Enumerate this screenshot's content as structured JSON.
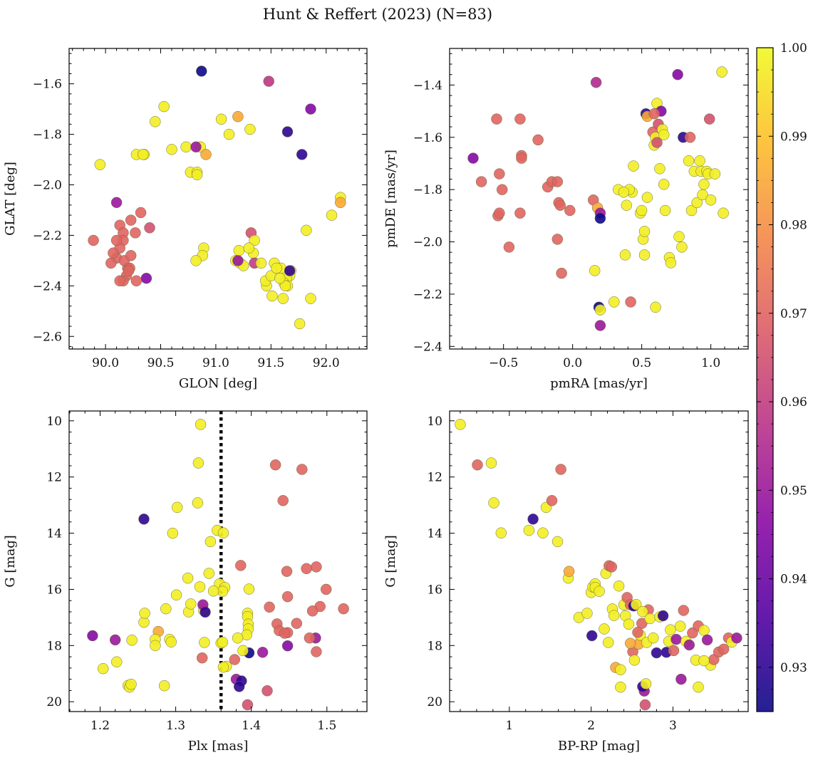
{
  "figure": {
    "title": "Hunt & Reffert (2023) (N=83)"
  },
  "colorbar": {
    "vmin": 0.925,
    "vmax": 1.0,
    "ticks": [
      0.93,
      0.94,
      0.95,
      0.96,
      0.97,
      0.98,
      0.99,
      1.0
    ],
    "tick_labels": [
      "0.93",
      "0.94",
      "0.95",
      "0.96",
      "0.97",
      "0.98",
      "0.99",
      "1.00"
    ],
    "colormap": "plasma",
    "colors": [
      "#0d0887",
      "#5302a3",
      "#8b0aa5",
      "#b83289",
      "#db5c68",
      "#f48849",
      "#febd2a",
      "#f0f921"
    ]
  },
  "chart_data": [
    {
      "type": "scatter",
      "id": "glon-glat",
      "xlabel": "GLON [deg]",
      "ylabel": "GLAT [deg]",
      "xlim": [
        89.67,
        92.37
      ],
      "ylim": [
        -2.65,
        -1.46
      ],
      "y_inverted": false,
      "xticks": [
        90.0,
        90.5,
        91.0,
        91.5,
        92.0
      ],
      "xtick_labels": [
        "90.0",
        "90.5",
        "91.0",
        "91.5",
        "92.0"
      ],
      "yticks": [
        -2.6,
        -2.4,
        -2.2,
        -2.0,
        -1.8,
        -1.6
      ],
      "ytick_labels": [
        "−2.6",
        "−2.4",
        "−2.2",
        "−2.0",
        "−1.8",
        "−1.6"
      ],
      "x": [
        90.87,
        91.48,
        89.95,
        90.53,
        90.45,
        90.28,
        90.35,
        90.34,
        90.1,
        91.05,
        91.2,
        91.12,
        91.31,
        90.77,
        90.86,
        90.73,
        90.91,
        90.83,
        90.83,
        90.6,
        91.65,
        91.86,
        91.78,
        90.1,
        90.05,
        89.89,
        90.2,
        90.23,
        90.4,
        90.32,
        90.13,
        90.16,
        90.16,
        90.13,
        90.27,
        90.17,
        90.22,
        90.19,
        90.23,
        90.21,
        90.28,
        90.16,
        90.13,
        90.1,
        90.07,
        90.37,
        91.21,
        91.18,
        91.32,
        91.34,
        91.35,
        91.3,
        91.53,
        91.46,
        91.68,
        91.67,
        91.59,
        91.64,
        91.62,
        91.65,
        91.45,
        91.5,
        91.51,
        91.61,
        91.63,
        91.58,
        91.55,
        91.86,
        91.76,
        91.82,
        91.35,
        91.41,
        91.22,
        91.25,
        91.2,
        92.05,
        92.13,
        92.13,
        90.89,
        90.88,
        90.82,
        91.67,
        90.82
      ],
      "y": [
        -1.55,
        -1.59,
        -1.92,
        -1.69,
        -1.75,
        -1.88,
        -1.88,
        -1.88,
        -2.07,
        -1.74,
        -1.73,
        -1.8,
        -1.78,
        -1.95,
        -1.85,
        -1.85,
        -1.88,
        -1.95,
        -1.96,
        -1.86,
        -1.79,
        -1.7,
        -1.88,
        -2.29,
        -2.31,
        -2.22,
        -2.33,
        -2.14,
        -2.17,
        -2.11,
        -2.16,
        -2.19,
        -2.22,
        -2.25,
        -2.19,
        -2.3,
        -2.33,
        -2.36,
        -2.28,
        -2.34,
        -2.38,
        -2.38,
        -2.38,
        -2.22,
        -2.27,
        -2.37,
        -2.26,
        -2.3,
        -2.19,
        -2.27,
        -2.22,
        -2.25,
        -2.31,
        -2.4,
        -2.34,
        -2.36,
        -2.33,
        -2.37,
        -2.39,
        -2.4,
        -2.38,
        -2.36,
        -2.44,
        -2.45,
        -2.4,
        -2.37,
        -2.33,
        -2.45,
        -2.55,
        -2.18,
        -2.31,
        -2.31,
        -2.31,
        -2.32,
        -2.3,
        -2.12,
        -2.05,
        -2.07,
        -2.25,
        -2.28,
        -2.3,
        -2.34,
        -1.85
      ],
      "c": [
        0.925,
        0.958,
        0.998,
        0.998,
        0.998,
        0.998,
        0.998,
        0.998,
        0.95,
        0.998,
        0.985,
        0.998,
        0.998,
        0.998,
        0.998,
        0.998,
        0.985,
        0.998,
        0.998,
        0.998,
        0.93,
        0.945,
        0.93,
        0.97,
        0.97,
        0.97,
        0.97,
        0.97,
        0.965,
        0.97,
        0.97,
        0.97,
        0.97,
        0.97,
        0.97,
        0.97,
        0.97,
        0.97,
        0.97,
        0.97,
        0.97,
        0.97,
        0.97,
        0.97,
        0.97,
        0.945,
        0.998,
        0.998,
        0.965,
        0.998,
        0.998,
        0.998,
        0.998,
        0.998,
        0.998,
        0.998,
        0.998,
        0.998,
        0.998,
        0.998,
        0.998,
        0.998,
        0.998,
        0.998,
        0.998,
        0.998,
        0.998,
        0.998,
        0.998,
        0.998,
        0.96,
        0.998,
        0.998,
        0.998,
        0.95,
        0.998,
        0.998,
        0.985,
        0.998,
        0.998,
        0.998,
        0.93,
        0.95
      ]
    },
    {
      "type": "scatter",
      "id": "pmra-pmde",
      "xlabel": "pmRA [mas/yr]",
      "ylabel": "pmDE [mas/yr]",
      "xlim": [
        -0.89,
        1.27
      ],
      "ylim": [
        -2.41,
        -1.26
      ],
      "y_inverted": false,
      "xticks": [
        -0.5,
        0.0,
        0.5,
        1.0
      ],
      "xtick_labels": [
        "−0.5",
        "0.0",
        "0.5",
        "1.0"
      ],
      "yticks": [
        -2.4,
        -2.2,
        -2.0,
        -1.8,
        -1.6,
        -1.4
      ],
      "ytick_labels": [
        "−2.4",
        "−2.2",
        "−2.0",
        "−1.8",
        "−1.6",
        "−1.4"
      ],
      "x": [
        -0.72,
        -0.66,
        -0.55,
        -0.38,
        -0.25,
        -0.53,
        -0.51,
        -0.37,
        -0.37,
        -0.18,
        -0.15,
        -0.11,
        -0.1,
        -0.09,
        -0.02,
        0.15,
        0.17,
        0.18,
        0.2,
        0.2,
        -0.54,
        -0.53,
        -0.38,
        -0.46,
        -0.11,
        -0.08,
        0.19,
        0.2,
        0.2,
        0.16,
        0.3,
        0.42,
        0.6,
        0.43,
        0.33,
        0.39,
        0.41,
        0.37,
        0.44,
        0.49,
        0.5,
        0.51,
        0.52,
        0.53,
        0.54,
        0.58,
        0.59,
        0.6,
        0.61,
        0.62,
        0.63,
        0.64,
        0.65,
        0.66,
        0.66,
        0.67,
        0.7,
        0.71,
        0.76,
        0.77,
        0.79,
        0.8,
        0.84,
        0.85,
        0.86,
        0.88,
        0.9,
        0.92,
        0.93,
        0.94,
        0.95,
        0.97,
        0.98,
        0.99,
        1.0,
        1.03,
        1.08,
        1.09,
        0.61,
        0.38,
        0.52,
        0.54,
        0.59
      ],
      "y": [
        -1.68,
        -1.77,
        -1.53,
        -1.53,
        -1.61,
        -1.74,
        -1.8,
        -1.67,
        -1.68,
        -1.79,
        -1.77,
        -1.77,
        -1.85,
        -1.86,
        -1.88,
        -1.84,
        -1.39,
        -1.87,
        -1.89,
        -1.91,
        -1.9,
        -1.89,
        -1.89,
        -2.02,
        -1.99,
        -2.12,
        -2.25,
        -2.26,
        -2.32,
        -2.11,
        -2.23,
        -2.23,
        -2.25,
        -1.81,
        -1.8,
        -1.86,
        -1.8,
        -1.81,
        -1.71,
        -1.89,
        -1.88,
        -1.99,
        -2.05,
        -1.51,
        -1.52,
        -1.58,
        -1.63,
        -1.6,
        -1.47,
        -1.55,
        -1.72,
        -1.5,
        -1.57,
        -1.59,
        -1.78,
        -1.88,
        -2.06,
        -2.08,
        -1.36,
        -1.98,
        -2.02,
        -1.6,
        -1.69,
        -1.6,
        -1.88,
        -1.73,
        -1.85,
        -1.69,
        -1.73,
        -1.82,
        -1.78,
        -1.73,
        -1.74,
        -1.53,
        -1.84,
        -1.74,
        -1.35,
        -1.89,
        -1.62,
        -2.05,
        -1.96,
        -1.83,
        -1.51
      ],
      "c": [
        0.945,
        0.97,
        0.97,
        0.97,
        0.97,
        0.97,
        0.97,
        0.97,
        0.97,
        0.97,
        0.97,
        0.97,
        0.97,
        0.97,
        0.97,
        0.97,
        0.955,
        0.985,
        0.95,
        0.925,
        0.97,
        0.97,
        0.97,
        0.97,
        0.97,
        0.97,
        0.925,
        0.998,
        0.95,
        0.998,
        0.998,
        0.97,
        0.998,
        0.998,
        0.998,
        0.998,
        0.998,
        0.998,
        0.998,
        0.998,
        0.998,
        0.998,
        0.998,
        0.93,
        0.985,
        0.97,
        0.998,
        0.998,
        0.998,
        0.965,
        0.998,
        0.945,
        0.998,
        0.998,
        0.998,
        0.998,
        0.998,
        0.998,
        0.945,
        0.998,
        0.998,
        0.93,
        0.998,
        0.97,
        0.998,
        0.998,
        0.998,
        0.998,
        0.998,
        0.998,
        0.998,
        0.998,
        0.998,
        0.965,
        0.998,
        0.998,
        0.998,
        0.998,
        0.965,
        0.998,
        0.998,
        0.998,
        0.97
      ]
    },
    {
      "type": "scatter",
      "id": "plx-g",
      "xlabel": "Plx [mas]",
      "ylabel": "G [mag]",
      "xlim": [
        1.159,
        1.553
      ],
      "ylim": [
        20.35,
        9.65
      ],
      "y_inverted": true,
      "vline": {
        "x": 1.36,
        "style": "dotted",
        "color": "#000000"
      },
      "xticks": [
        1.2,
        1.3,
        1.4,
        1.5
      ],
      "xtick_labels": [
        "1.2",
        "1.3",
        "1.4",
        "1.5"
      ],
      "yticks": [
        10,
        12,
        14,
        16,
        18,
        20
      ],
      "ytick_labels": [
        "10",
        "12",
        "14",
        "16",
        "18",
        "20"
      ],
      "x": [
        1.333,
        1.33,
        1.302,
        1.329,
        1.258,
        1.296,
        1.355,
        1.363,
        1.346,
        1.432,
        1.467,
        1.442,
        1.386,
        1.397,
        1.447,
        1.486,
        1.473,
        1.499,
        1.46,
        1.491,
        1.522,
        1.448,
        1.424,
        1.434,
        1.437,
        1.448,
        1.448,
        1.481,
        1.486,
        1.485,
        1.444,
        1.477,
        1.316,
        1.344,
        1.337,
        1.358,
        1.365,
        1.362,
        1.332,
        1.35,
        1.317,
        1.32,
        1.301,
        1.287,
        1.258,
        1.335,
        1.367,
        1.395,
        1.395,
        1.396,
        1.396,
        1.394,
        1.397,
        1.378,
        1.336,
        1.36,
        1.339,
        1.389,
        1.415,
        1.38,
        1.363,
        1.362,
        1.387,
        1.384,
        1.421,
        1.395,
        1.204,
        1.222,
        1.237,
        1.239,
        1.241,
        1.285,
        1.292,
        1.294,
        1.277,
        1.273,
        1.273,
        1.242,
        1.22,
        1.19,
        1.259,
        1.382,
        1.338
      ],
      "y": [
        10.13,
        11.5,
        13.08,
        12.92,
        13.5,
        14.0,
        13.9,
        13.99,
        14.3,
        11.57,
        11.73,
        12.84,
        15.15,
        15.99,
        15.36,
        15.2,
        15.26,
        16.0,
        17.21,
        16.61,
        16.69,
        16.26,
        16.63,
        17.23,
        17.47,
        18.01,
        17.54,
        16.77,
        18.22,
        17.73,
        17.56,
        17.73,
        15.6,
        15.43,
        16.75,
        15.8,
        15.93,
        16.07,
        15.91,
        16.06,
        16.8,
        16.52,
        16.2,
        16.69,
        17.17,
        18.44,
        18.74,
        16.85,
        16.97,
        17.24,
        17.41,
        17.62,
        18.26,
        18.5,
        16.55,
        17.91,
        16.81,
        18.18,
        18.24,
        19.2,
        18.77,
        17.88,
        19.26,
        19.46,
        19.61,
        20.11,
        18.82,
        18.58,
        19.42,
        19.48,
        19.38,
        19.43,
        17.78,
        17.87,
        17.5,
        17.78,
        18.0,
        17.81,
        17.8,
        17.65,
        16.85,
        17.73,
        17.89
      ],
      "c": [
        0.998,
        0.998,
        0.998,
        0.998,
        0.93,
        0.998,
        0.998,
        0.998,
        0.998,
        0.97,
        0.97,
        0.97,
        0.97,
        0.998,
        0.97,
        0.97,
        0.97,
        0.97,
        0.97,
        0.97,
        0.97,
        0.97,
        0.97,
        0.97,
        0.97,
        0.945,
        0.97,
        0.97,
        0.97,
        0.95,
        0.97,
        0.97,
        0.998,
        0.998,
        0.998,
        0.998,
        0.998,
        0.998,
        0.998,
        0.998,
        0.998,
        0.998,
        0.998,
        0.998,
        0.998,
        0.97,
        0.998,
        0.998,
        0.998,
        0.998,
        0.998,
        0.998,
        0.925,
        0.97,
        0.95,
        0.998,
        0.93,
        0.998,
        0.95,
        0.95,
        0.998,
        0.998,
        0.93,
        0.93,
        0.965,
        0.965,
        0.998,
        0.998,
        0.998,
        0.998,
        0.998,
        0.998,
        0.998,
        0.998,
        0.985,
        0.998,
        0.998,
        0.998,
        0.95,
        0.945,
        0.998,
        0.998,
        0.998
      ]
    },
    {
      "type": "scatter",
      "id": "bprp-g",
      "xlabel": "BP-RP [mag]",
      "ylabel": "G [mag]",
      "xlim": [
        0.27,
        3.92
      ],
      "ylim": [
        20.35,
        9.65
      ],
      "y_inverted": true,
      "xticks": [
        1,
        2,
        3
      ],
      "xtick_labels": [
        "1",
        "2",
        "3"
      ],
      "yticks": [
        10,
        12,
        14,
        16,
        18,
        20
      ],
      "ytick_labels": [
        "10",
        "12",
        "14",
        "16",
        "18",
        "20"
      ],
      "x": [
        0.4,
        0.61,
        0.78,
        0.9,
        0.81,
        1.29,
        1.24,
        1.41,
        1.45,
        1.52,
        1.59,
        1.63,
        1.72,
        1.73,
        1.85,
        1.95,
        2.0,
        2.02,
        2.05,
        2.05,
        2.1,
        2.18,
        2.16,
        2.22,
        2.25,
        2.26,
        2.3,
        2.36,
        2.4,
        2.42,
        2.44,
        2.46,
        2.48,
        2.51,
        2.52,
        2.55,
        2.58,
        2.6,
        2.62,
        2.65,
        2.66,
        2.68,
        2.7,
        2.72,
        2.76,
        2.8,
        2.84,
        2.88,
        2.92,
        2.95,
        2.97,
        3.01,
        3.04,
        3.09,
        3.13,
        3.16,
        3.2,
        3.24,
        3.28,
        3.31,
        3.38,
        3.42,
        3.46,
        3.5,
        3.56,
        3.62,
        3.68,
        3.72,
        3.78,
        2.01,
        2.21,
        2.34,
        2.63,
        2.67,
        2.48,
        2.57,
        2.63,
        2.36,
        3.1,
        3.38,
        3.31,
        2.53,
        2.28
      ],
      "y": [
        10.13,
        11.57,
        11.5,
        13.99,
        12.92,
        13.5,
        13.9,
        13.99,
        13.08,
        12.84,
        14.3,
        11.73,
        15.6,
        15.36,
        17.0,
        16.85,
        16.11,
        15.91,
        15.8,
        15.93,
        16.07,
        15.43,
        17.41,
        15.16,
        15.2,
        16.7,
        18.78,
        18.86,
        16.55,
        16.94,
        16.29,
        17.24,
        16.55,
        18.22,
        16.59,
        16.54,
        17.95,
        17.63,
        17.21,
        19.62,
        20.11,
        17.89,
        16.73,
        17.04,
        17.73,
        18.26,
        16.98,
        16.94,
        18.24,
        17.85,
        17.44,
        18.18,
        17.78,
        17.31,
        16.75,
        17.85,
        17.98,
        17.55,
        18.52,
        17.3,
        17.46,
        17.8,
        18.7,
        18.5,
        18.23,
        18.13,
        17.73,
        17.88,
        17.73,
        17.65,
        17.89,
        15.88,
        19.46,
        19.36,
        17.92,
        17.53,
        16.79,
        19.48,
        19.2,
        18.54,
        19.48,
        18.52,
        16.93
      ],
      "c": [
        0.998,
        0.97,
        0.998,
        0.998,
        0.998,
        0.93,
        0.998,
        0.998,
        0.998,
        0.97,
        0.998,
        0.97,
        0.998,
        0.985,
        0.998,
        0.998,
        0.998,
        0.998,
        0.998,
        0.998,
        0.998,
        0.998,
        0.998,
        0.97,
        0.97,
        0.998,
        0.985,
        0.998,
        0.998,
        0.998,
        0.97,
        0.998,
        0.97,
        0.97,
        0.93,
        0.998,
        0.985,
        0.998,
        0.97,
        0.95,
        0.965,
        0.998,
        0.97,
        0.998,
        0.998,
        0.93,
        0.998,
        0.93,
        0.93,
        0.998,
        0.998,
        0.97,
        0.95,
        0.998,
        0.97,
        0.998,
        0.95,
        0.97,
        0.998,
        0.97,
        0.998,
        0.95,
        0.998,
        0.97,
        0.97,
        0.97,
        0.97,
        0.998,
        0.95,
        0.93,
        0.998,
        0.998,
        0.93,
        0.998,
        0.985,
        0.97,
        0.998,
        0.998,
        0.95,
        0.998,
        0.998,
        0.998,
        0.998
      ]
    }
  ]
}
